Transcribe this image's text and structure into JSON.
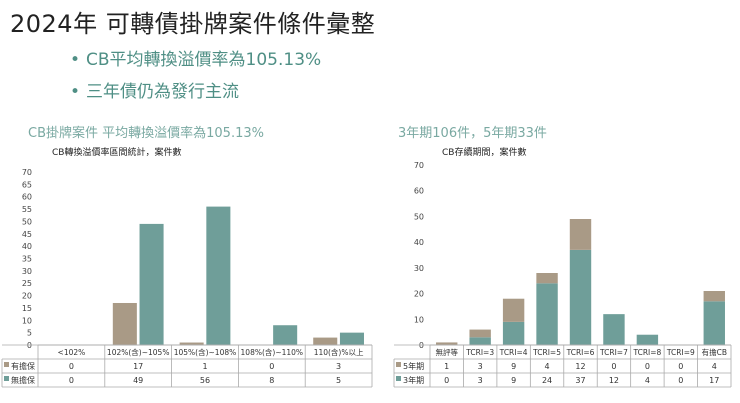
{
  "title": "2024年 可轉債掛牌案件條件彙整",
  "bullets": [
    "CB平均轉換溢價率為105.13%",
    "三年債仍為發行主流"
  ],
  "left_heading": "CB掛牌案件 平均轉換溢價率為105.13%",
  "right_heading": "3年期106件，5年期33件",
  "colors": {
    "secured": "#a99a86",
    "unsecured": "#6f9e99",
    "heading": "#7aa9a2",
    "bullet": "#4f8f85"
  },
  "chart_data": [
    {
      "type": "bar",
      "stacked": false,
      "title": "CB轉換溢價率區間統計，案件數",
      "categories": [
        "<102%",
        "102%(含)~105%",
        "105%(含)~108%",
        "108%(含)~110%",
        "110(含)%以上"
      ],
      "series": [
        {
          "name": "有擔保",
          "values": [
            0,
            17,
            1,
            0,
            3
          ]
        },
        {
          "name": "無擔保",
          "values": [
            0,
            49,
            56,
            8,
            5
          ]
        }
      ],
      "ylim": [
        0,
        70
      ],
      "yticks": [
        0,
        5,
        10,
        15,
        20,
        25,
        30,
        35,
        40,
        45,
        50,
        55,
        60,
        65,
        70
      ],
      "legend": "table-below"
    },
    {
      "type": "bar",
      "stacked": true,
      "title": "CB存續期間，案件數",
      "categories": [
        "無評等",
        "TCRI=3",
        "TCRI=4",
        "TCRI=5",
        "TCRI=6",
        "TCRI=7",
        "TCRI=8",
        "TCRI=9",
        "有擔CB"
      ],
      "series": [
        {
          "name": "5年期",
          "values": [
            1,
            3,
            9,
            4,
            12,
            0,
            0,
            0,
            4
          ]
        },
        {
          "name": "3年期",
          "values": [
            0,
            3,
            9,
            24,
            37,
            12,
            4,
            0,
            17
          ]
        }
      ],
      "ylim": [
        0,
        70
      ],
      "yticks": [
        0,
        10,
        20,
        30,
        40,
        50,
        60,
        70
      ],
      "legend": "table-below"
    }
  ]
}
